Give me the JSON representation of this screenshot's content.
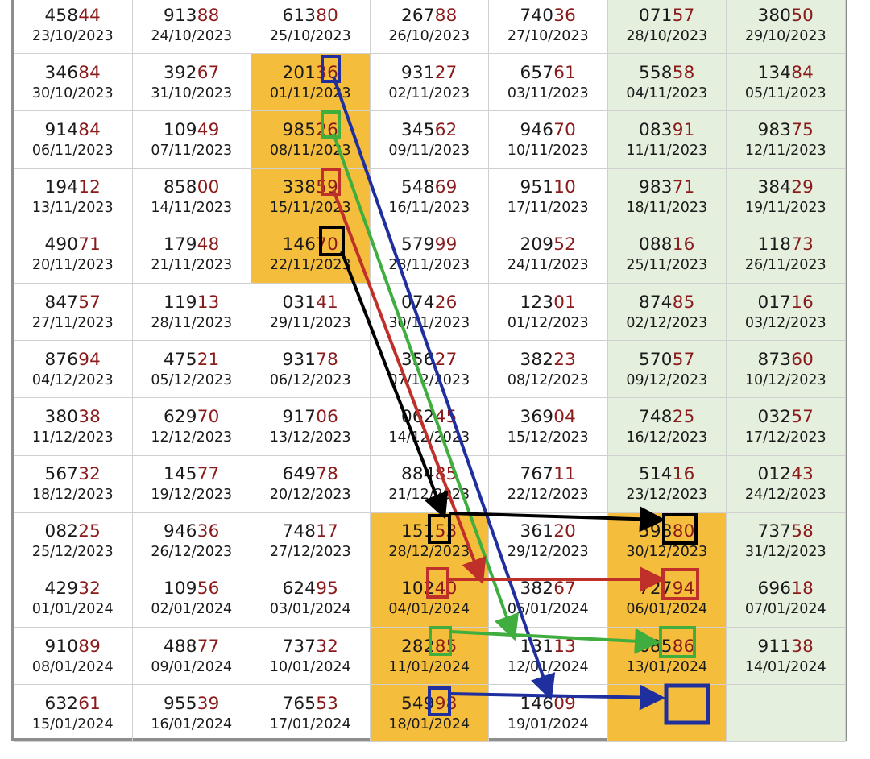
{
  "table": {
    "rows": [
      [
        {
          "num": "45844",
          "date": "23/10/2023"
        },
        {
          "num": "91388",
          "date": "24/10/2023"
        },
        {
          "num": "61380",
          "date": "25/10/2023"
        },
        {
          "num": "26788",
          "date": "26/10/2023"
        },
        {
          "num": "74036",
          "date": "27/10/2023"
        },
        {
          "num": "07157",
          "date": "28/10/2023"
        },
        {
          "num": "38050",
          "date": "29/10/2023"
        }
      ],
      [
        {
          "num": "34684",
          "date": "30/10/2023"
        },
        {
          "num": "39267",
          "date": "31/10/2023"
        },
        {
          "num": "20136",
          "date": "01/11/2023",
          "hl": true
        },
        {
          "num": "93127",
          "date": "02/11/2023"
        },
        {
          "num": "65761",
          "date": "03/11/2023"
        },
        {
          "num": "55858",
          "date": "04/11/2023"
        },
        {
          "num": "13484",
          "date": "05/11/2023"
        }
      ],
      [
        {
          "num": "91484",
          "date": "06/11/2023"
        },
        {
          "num": "10949",
          "date": "07/11/2023"
        },
        {
          "num": "98526",
          "date": "08/11/2023",
          "hl": true
        },
        {
          "num": "34562",
          "date": "09/11/2023"
        },
        {
          "num": "94670",
          "date": "10/11/2023"
        },
        {
          "num": "08391",
          "date": "11/11/2023"
        },
        {
          "num": "98375",
          "date": "12/11/2023"
        }
      ],
      [
        {
          "num": "19412",
          "date": "13/11/2023"
        },
        {
          "num": "85800",
          "date": "14/11/2023"
        },
        {
          "num": "33859",
          "date": "15/11/2023",
          "hl": true
        },
        {
          "num": "54869",
          "date": "16/11/2023"
        },
        {
          "num": "95110",
          "date": "17/11/2023"
        },
        {
          "num": "98371",
          "date": "18/11/2023"
        },
        {
          "num": "38429",
          "date": "19/11/2023"
        }
      ],
      [
        {
          "num": "49071",
          "date": "20/11/2023"
        },
        {
          "num": "17948",
          "date": "21/11/2023"
        },
        {
          "num": "14670",
          "date": "22/11/2023",
          "hl": true
        },
        {
          "num": "57999",
          "date": "23/11/2023"
        },
        {
          "num": "20952",
          "date": "24/11/2023"
        },
        {
          "num": "08816",
          "date": "25/11/2023"
        },
        {
          "num": "11873",
          "date": "26/11/2023"
        }
      ],
      [
        {
          "num": "84757",
          "date": "27/11/2023"
        },
        {
          "num": "11913",
          "date": "28/11/2023"
        },
        {
          "num": "03141",
          "date": "29/11/2023"
        },
        {
          "num": "07426",
          "date": "30/11/2023"
        },
        {
          "num": "12301",
          "date": "01/12/2023"
        },
        {
          "num": "87485",
          "date": "02/12/2023"
        },
        {
          "num": "01716",
          "date": "03/12/2023"
        }
      ],
      [
        {
          "num": "87694",
          "date": "04/12/2023"
        },
        {
          "num": "47521",
          "date": "05/12/2023"
        },
        {
          "num": "93178",
          "date": "06/12/2023"
        },
        {
          "num": "35627",
          "date": "07/12/2023"
        },
        {
          "num": "38223",
          "date": "08/12/2023"
        },
        {
          "num": "57057",
          "date": "09/12/2023"
        },
        {
          "num": "87360",
          "date": "10/12/2023"
        }
      ],
      [
        {
          "num": "38038",
          "date": "11/12/2023"
        },
        {
          "num": "62970",
          "date": "12/12/2023"
        },
        {
          "num": "91706",
          "date": "13/12/2023"
        },
        {
          "num": "06245",
          "date": "14/12/2023"
        },
        {
          "num": "36904",
          "date": "15/12/2023"
        },
        {
          "num": "74825",
          "date": "16/12/2023"
        },
        {
          "num": "03257",
          "date": "17/12/2023"
        }
      ],
      [
        {
          "num": "56732",
          "date": "18/12/2023"
        },
        {
          "num": "14577",
          "date": "19/12/2023"
        },
        {
          "num": "64978",
          "date": "20/12/2023"
        },
        {
          "num": "88485",
          "date": "21/12/2023"
        },
        {
          "num": "76711",
          "date": "22/12/2023"
        },
        {
          "num": "51416",
          "date": "23/12/2023"
        },
        {
          "num": "01243",
          "date": "24/12/2023"
        }
      ],
      [
        {
          "num": "08225",
          "date": "25/12/2023"
        },
        {
          "num": "94636",
          "date": "26/12/2023"
        },
        {
          "num": "74817",
          "date": "27/12/2023"
        },
        {
          "num": "15153",
          "date": "28/12/2023",
          "hl": true
        },
        {
          "num": "36120",
          "date": "29/12/2023"
        },
        {
          "num": "59880",
          "date": "30/12/2023",
          "hl": true
        },
        {
          "num": "73758",
          "date": "31/12/2023"
        }
      ],
      [
        {
          "num": "42932",
          "date": "01/01/2024"
        },
        {
          "num": "10956",
          "date": "02/01/2024"
        },
        {
          "num": "62495",
          "date": "03/01/2024"
        },
        {
          "num": "10240",
          "date": "04/01/2024",
          "hl": true
        },
        {
          "num": "38267",
          "date": "05/01/2024"
        },
        {
          "num": "72794",
          "date": "06/01/2024",
          "hl": true
        },
        {
          "num": "69618",
          "date": "07/01/2024"
        }
      ],
      [
        {
          "num": "91089",
          "date": "08/01/2024"
        },
        {
          "num": "48877",
          "date": "09/01/2024"
        },
        {
          "num": "73732",
          "date": "10/01/2024"
        },
        {
          "num": "28285",
          "date": "11/01/2024",
          "hl": true
        },
        {
          "num": "13113",
          "date": "12/01/2024"
        },
        {
          "num": "68586",
          "date": "13/01/2024",
          "hl": true
        },
        {
          "num": "91138",
          "date": "14/01/2024"
        }
      ],
      [
        {
          "num": "63261",
          "date": "15/01/2024"
        },
        {
          "num": "95539",
          "date": "16/01/2024"
        },
        {
          "num": "76553",
          "date": "17/01/2024"
        },
        {
          "num": "54998",
          "date": "18/01/2024",
          "hl": true
        },
        {
          "num": "14609",
          "date": "19/01/2024"
        },
        {
          "num": "",
          "date": "",
          "hl": true
        },
        {
          "num": "",
          "date": "",
          "empty": true
        }
      ]
    ]
  },
  "colors": {
    "highlight": "#f5bd3c",
    "weekend": "#e4efde",
    "digits_tail": "#8b1a1a",
    "arrow_blue": "#1f2f9e",
    "arrow_green": "#3fae3f",
    "arrow_red": "#c0302a",
    "arrow_black": "#000000"
  }
}
